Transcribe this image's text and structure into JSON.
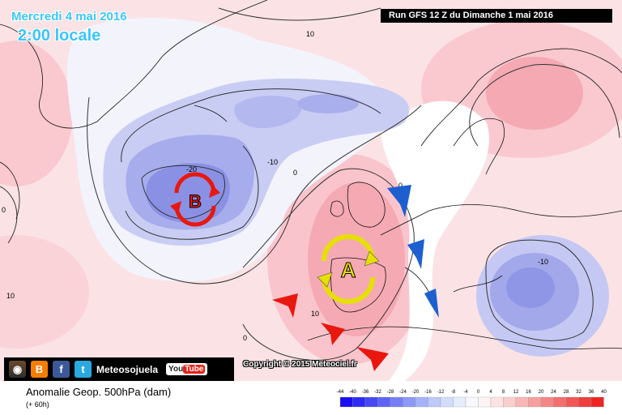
{
  "header": {
    "date": "Mercredi 4 mai 2016",
    "time": "2:00 locale",
    "run": "Run GFS 12 Z du Dimanche 1 mai 2016"
  },
  "map": {
    "systems": [
      {
        "letter": "B",
        "meaning": "low",
        "color": "#e8180e"
      },
      {
        "letter": "A",
        "meaning": "high",
        "color": "#e6e000"
      }
    ],
    "contour_labels": [
      "10",
      "-20",
      "-10",
      "0",
      "0",
      "-10",
      "10",
      "10",
      "0",
      "0"
    ],
    "arrow_colors": {
      "blue": "#1e5fd0",
      "red": "#e8180e"
    }
  },
  "footer": {
    "social_label": "Meteosojuela",
    "youtube_you": "You",
    "youtube_tube": "Tube",
    "copyright": "Copyright © 2015 Meteociel.fr",
    "product": "Anomalie Geop. 500hPa (dam)",
    "lead": "(+ 60h)",
    "icons": [
      "instagram-icon",
      "blogger-icon",
      "facebook-icon",
      "twitter-icon",
      "youtube-icon"
    ]
  },
  "scale": {
    "ticks": [
      "-44",
      "-40",
      "-36",
      "-32",
      "-28",
      "-24",
      "-20",
      "-16",
      "-12",
      "-8",
      "-4",
      "0",
      "4",
      "8",
      "12",
      "16",
      "20",
      "24",
      "28",
      "32",
      "36",
      "40"
    ],
    "colors": [
      "#1a0ff0",
      "#2e2cf2",
      "#4648f4",
      "#5e63f5",
      "#767ef6",
      "#8e99f7",
      "#a6b2f8",
      "#bdc9f9",
      "#d3ddfb",
      "#e6edfd",
      "#f6f8fe",
      "#fef4f4",
      "#fde3e3",
      "#fbcece",
      "#f9b6b6",
      "#f79e9e",
      "#f58686",
      "#f36e6e",
      "#f15656",
      "#ef3d3d",
      "#ed2424"
    ]
  }
}
